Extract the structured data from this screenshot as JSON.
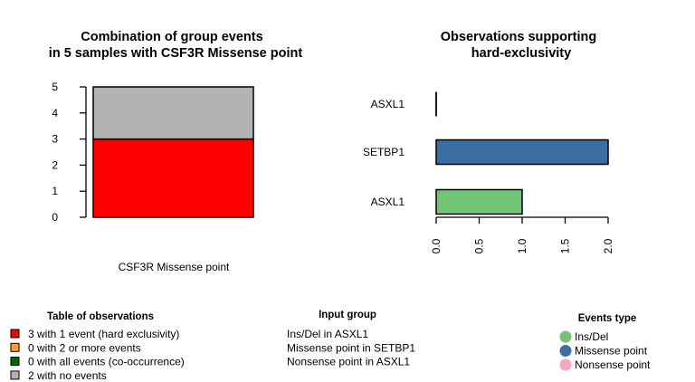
{
  "chart_data": [
    {
      "type": "bar",
      "stacked": true,
      "title": "Combination of group events\nin 5 samples with CSF3R Missense point",
      "xlabel": "CSF3R Missense point",
      "ylabel": "",
      "ylim": [
        0,
        5
      ],
      "yticks": [
        "0",
        "1",
        "2",
        "3",
        "4",
        "5"
      ],
      "categories": [
        "CSF3R Missense point"
      ],
      "series": [
        {
          "name": "3 with 1 event (hard exclusivity)",
          "values": [
            3
          ],
          "color": "#ff0000"
        },
        {
          "name": "2 with no events",
          "values": [
            2
          ],
          "color": "#b3b3b3"
        }
      ]
    },
    {
      "type": "bar",
      "orientation": "horizontal",
      "title": "Observations supporting\nhard-exclusivity",
      "xlabel": "",
      "ylabel": "",
      "xlim": [
        0,
        2
      ],
      "xticks": [
        "0.0",
        "0.5",
        "1.0",
        "1.5",
        "2.0"
      ],
      "categories": [
        "ASXL1",
        "SETBP1",
        "ASXL1"
      ],
      "values": [
        1,
        2,
        0
      ],
      "colors": [
        "#74c476",
        "#3b6fa3",
        "#f4a6c9"
      ]
    }
  ],
  "legends": {
    "observations": {
      "title": "Table of observations",
      "items": [
        {
          "label": "3 with 1 event (hard exclusivity)",
          "color": "#ff0000"
        },
        {
          "label": "0 with 2 or more events",
          "color": "#ff9a33"
        },
        {
          "label": "0 with all events (co-occurrence)",
          "color": "#006400"
        },
        {
          "label": "2 with no events",
          "color": "#b3b3b3"
        }
      ]
    },
    "input_group": {
      "title": "Input group",
      "items": [
        "Ins/Del in ASXL1",
        "Missense point in SETBP1",
        "Nonsense point in ASXL1"
      ]
    },
    "events_type": {
      "title": "Events type",
      "items": [
        {
          "label": "Ins/Del",
          "color": "#74c476"
        },
        {
          "label": "Missense point",
          "color": "#3b6fa3"
        },
        {
          "label": "Nonsense point",
          "color": "#f4a6c9"
        }
      ]
    }
  }
}
